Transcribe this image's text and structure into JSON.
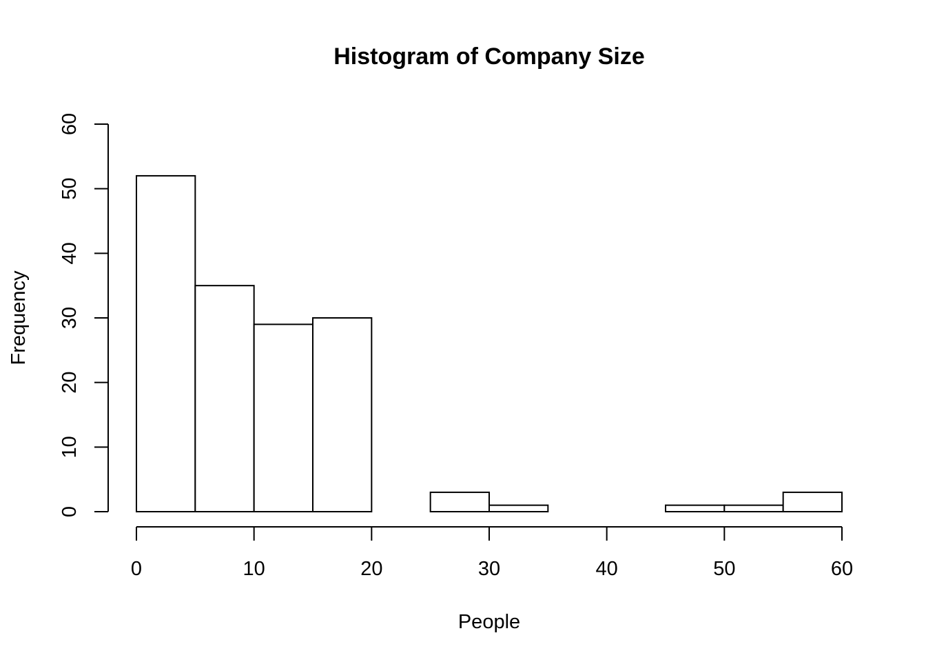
{
  "chart_data": {
    "type": "bar",
    "title": "Histogram of Company Size",
    "xlabel": "People",
    "ylabel": "Frequency",
    "bin_edges": [
      0,
      5,
      10,
      15,
      20,
      25,
      30,
      35,
      40,
      45,
      50,
      55,
      60
    ],
    "values": [
      52,
      35,
      29,
      30,
      0,
      3,
      1,
      0,
      0,
      1,
      1,
      3
    ],
    "xlim": [
      0,
      60
    ],
    "ylim": [
      0,
      60
    ],
    "x_ticks": [
      0,
      10,
      20,
      30,
      40,
      50,
      60
    ],
    "y_ticks": [
      0,
      10,
      20,
      30,
      40,
      50,
      60
    ],
    "grid": false,
    "colors": {
      "bar_fill": "#ffffff",
      "bar_stroke": "#000000"
    }
  }
}
